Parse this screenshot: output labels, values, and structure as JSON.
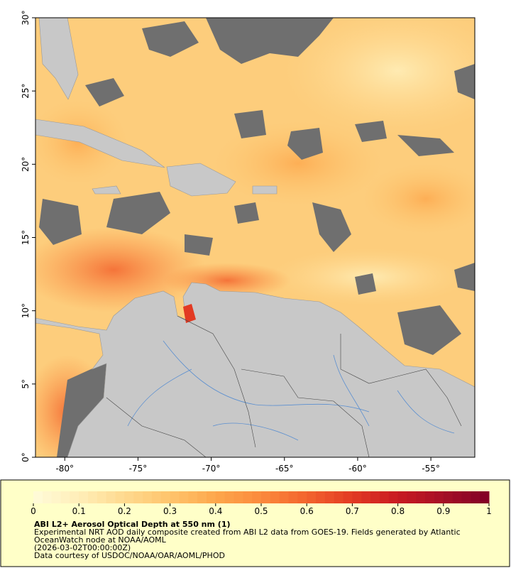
{
  "map": {
    "xlim": [
      -82,
      -52
    ],
    "ylim": [
      0,
      30
    ],
    "xticks": [
      {
        "value": -80,
        "label": "-80°"
      },
      {
        "value": -75,
        "label": "-75°"
      },
      {
        "value": -70,
        "label": "-70°"
      },
      {
        "value": -65,
        "label": "-65°"
      },
      {
        "value": -60,
        "label": "-60°"
      },
      {
        "value": -55,
        "label": "-55°"
      }
    ],
    "yticks": [
      {
        "value": 0,
        "label": "0°"
      },
      {
        "value": 5,
        "label": "5°"
      },
      {
        "value": 10,
        "label": "10°"
      },
      {
        "value": 15,
        "label": "15°"
      },
      {
        "value": 20,
        "label": "20°"
      },
      {
        "value": 25,
        "label": "25°"
      },
      {
        "value": 30,
        "label": "30°"
      }
    ]
  },
  "colorbar": {
    "range": [
      0,
      1
    ],
    "ticks": [
      0,
      0.1,
      0.2,
      0.3,
      0.4,
      0.5,
      0.6,
      0.7,
      0.8,
      0.9,
      1
    ],
    "colors": [
      "#fffbd9",
      "#ffeeb8",
      "#fed98e",
      "#fec46c",
      "#fda74c",
      "#fb8a3c",
      "#f3642e",
      "#e23a23",
      "#c81a22",
      "#a50f26",
      "#800026"
    ]
  },
  "caption": {
    "title": "ABI L2+ Aerosol Optical Depth at 550 nm (1)",
    "lines": [
      "Experimental NRT AOD daily composite created from ABI L2 data from GOES-19. Fields generated by Atlantic",
      "OceanWatch node at NOAA/AOML",
      "(2026-03-02T00:00:00Z)",
      "Data courtesy of USDOC/NOAA/OAR/AOML/PHOD"
    ]
  }
}
